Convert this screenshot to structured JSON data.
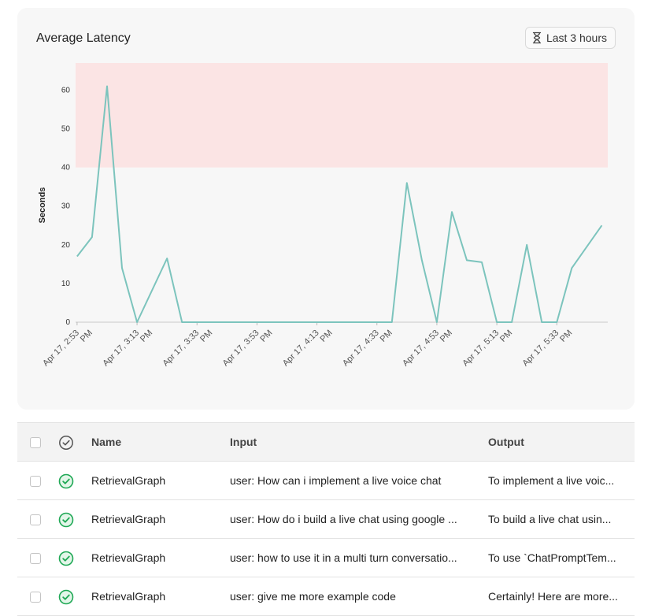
{
  "card": {
    "title": "Average Latency",
    "range_label": "Last 3 hours"
  },
  "chart_data": {
    "type": "area",
    "ylabel": "Seconds",
    "xlabel": "",
    "ylim": [
      0,
      67
    ],
    "yticks": [
      0,
      10,
      20,
      30,
      40,
      50,
      60
    ],
    "threshold_band": {
      "from": 40,
      "to": 67,
      "color": "#fbe4e4"
    },
    "line_color": "#7cc4bd",
    "grid": false,
    "x_tick_labels": [
      [
        "Apr 17, 2:53",
        "PM"
      ],
      [
        "Apr 17, 3:13",
        "PM"
      ],
      [
        "Apr 17, 3:33",
        "PM"
      ],
      [
        "Apr 17, 3:53",
        "PM"
      ],
      [
        "Apr 17, 4:13",
        "PM"
      ],
      [
        "Apr 17, 4:33",
        "PM"
      ],
      [
        "Apr 17, 4:53",
        "PM"
      ],
      [
        "Apr 17, 5:13",
        "PM"
      ],
      [
        "Apr 17, 5:33",
        "PM"
      ]
    ],
    "x_tick_minutes": [
      0,
      20,
      40,
      60,
      80,
      100,
      120,
      140,
      160
    ],
    "x_range_minutes": [
      -0.5,
      177
    ],
    "points": [
      {
        "t": 0,
        "v": 17
      },
      {
        "t": 5,
        "v": 22
      },
      {
        "t": 10,
        "v": 61
      },
      {
        "t": 15,
        "v": 14
      },
      {
        "t": 20,
        "v": 0
      },
      {
        "t": 30,
        "v": 16.5
      },
      {
        "t": 35,
        "v": 0
      },
      {
        "t": 105,
        "v": 0
      },
      {
        "t": 110,
        "v": 36
      },
      {
        "t": 115,
        "v": 16
      },
      {
        "t": 120,
        "v": 0
      },
      {
        "t": 125,
        "v": 28.5
      },
      {
        "t": 130,
        "v": 16
      },
      {
        "t": 135,
        "v": 15.5
      },
      {
        "t": 140,
        "v": 0
      },
      {
        "t": 145,
        "v": 0
      },
      {
        "t": 150,
        "v": 20
      },
      {
        "t": 155,
        "v": 0
      },
      {
        "t": 160,
        "v": 0
      },
      {
        "t": 165,
        "v": 14
      },
      {
        "t": 175,
        "v": 25
      }
    ]
  },
  "table": {
    "columns": {
      "name": "Name",
      "input": "Input",
      "output": "Output"
    },
    "rows": [
      {
        "name": "RetrievalGraph",
        "input": "user: How can i implement a live voice chat",
        "output": "To implement a live voic..."
      },
      {
        "name": "RetrievalGraph",
        "input": "user: How do i build a live chat using google ...",
        "output": "To build a live chat usin..."
      },
      {
        "name": "RetrievalGraph",
        "input": "user: how to use it in a multi turn conversatio...",
        "output": "To use `ChatPromptTem..."
      },
      {
        "name": "RetrievalGraph",
        "input": "user: give me more example code",
        "output": "Certainly! Here are more..."
      }
    ]
  }
}
